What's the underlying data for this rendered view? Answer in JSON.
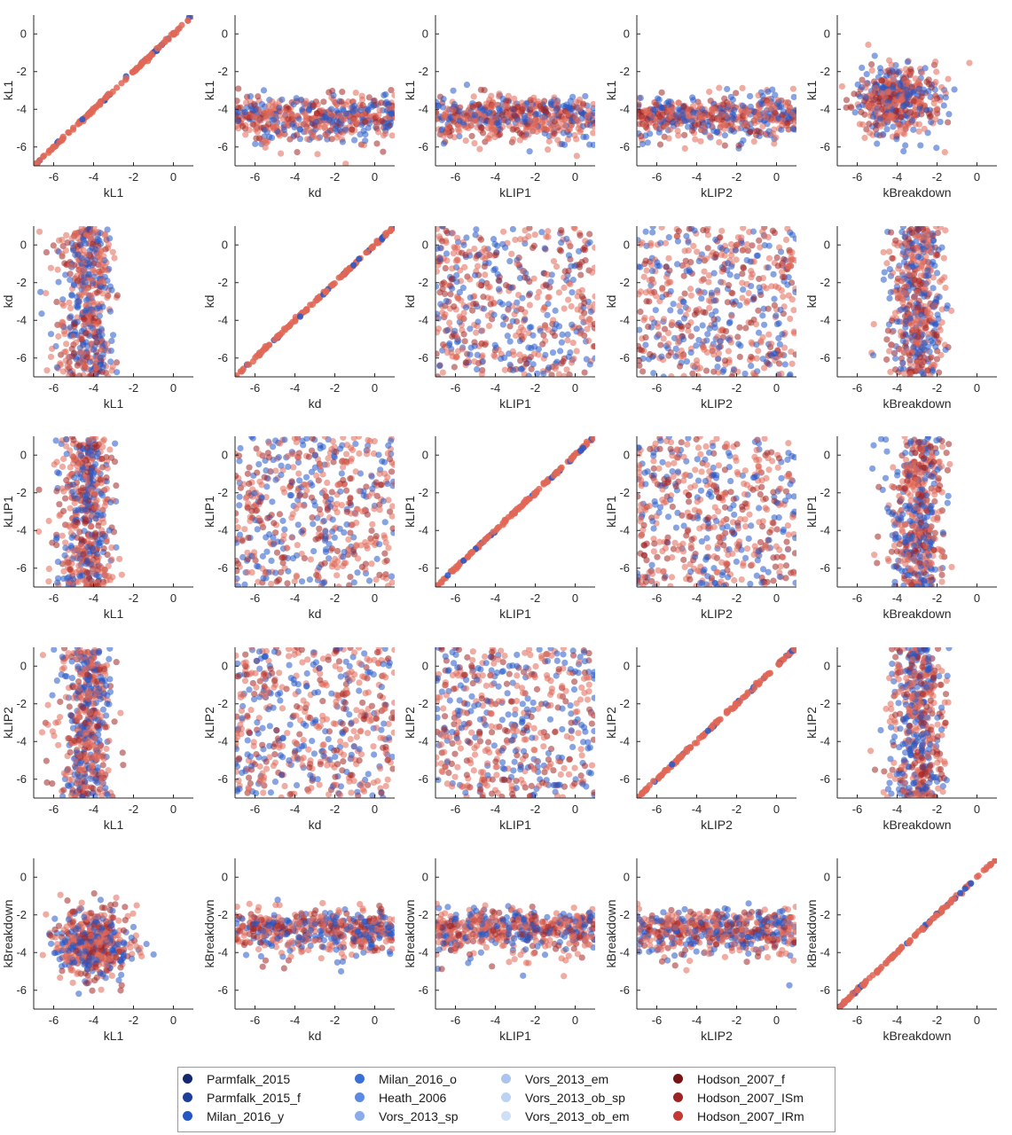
{
  "chart_data": {
    "type": "scatter",
    "layout": "scatter-matrix",
    "variables": [
      "kL1",
      "kd",
      "kLIP1",
      "kLIP2",
      "kBreakdown"
    ],
    "xlim": [
      -7,
      1
    ],
    "ylim": [
      -7,
      1
    ],
    "xticks": [
      "-6",
      "-4",
      "-2",
      "0"
    ],
    "yticks": [
      "0",
      "-2",
      "-4",
      "-6"
    ],
    "grid": false,
    "legend_position": "bottom-center",
    "series": [
      {
        "name": "Parmfalk_2015",
        "color": "#14286e"
      },
      {
        "name": "Parmfalk_2015_f",
        "color": "#1c3f9c"
      },
      {
        "name": "Milan_2016_y",
        "color": "#2457c4"
      },
      {
        "name": "Milan_2016_o",
        "color": "#3c6fd6"
      },
      {
        "name": "Heath_2006",
        "color": "#5b8ae0"
      },
      {
        "name": "Vors_2013_sp",
        "color": "#8aacea"
      },
      {
        "name": "Vors_2013_em",
        "color": "#aac4f0"
      },
      {
        "name": "Vors_2013_ob_sp",
        "color": "#bcd2f3"
      },
      {
        "name": "Vors_2013_ob_em",
        "color": "#cfe0f6"
      },
      {
        "name": "Hodson_2007_f",
        "color": "#7a1414"
      },
      {
        "name": "Hodson_2007_ISm",
        "color": "#9e2424"
      },
      {
        "name": "Hodson_2007_IRm",
        "color": "#c43a32"
      }
    ],
    "accent_colors": {
      "blue": "#2557c9",
      "light_red": "#e06757",
      "dark_red": "#a32525"
    }
  }
}
